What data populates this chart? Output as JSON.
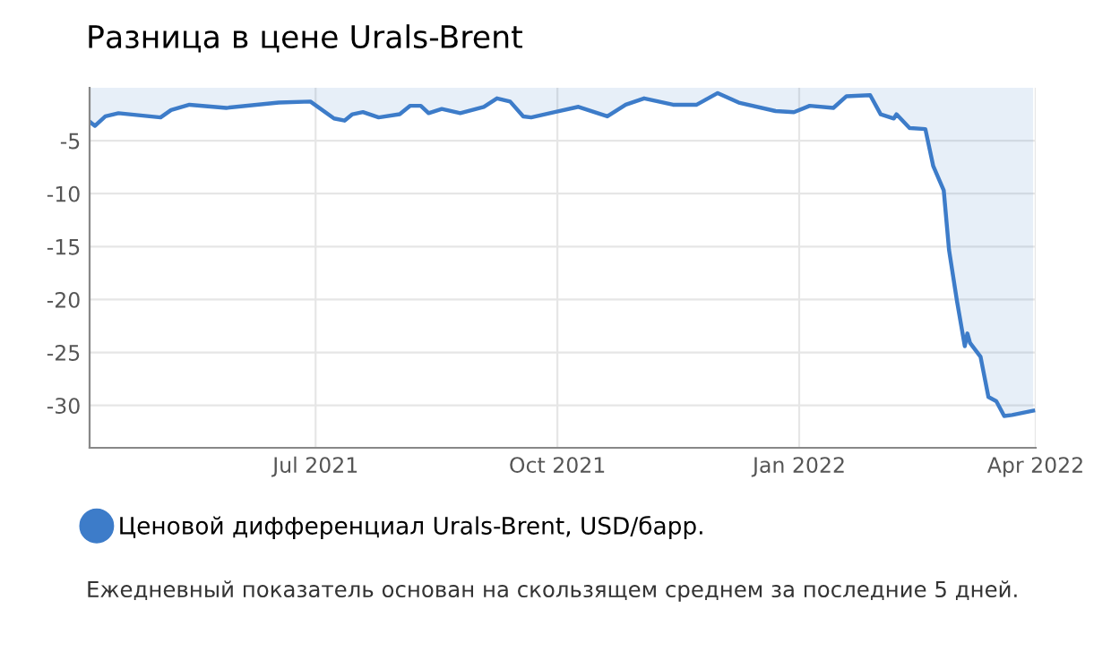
{
  "chart_data": {
    "type": "area",
    "title": "Разница в цене Urals-Brent",
    "x": [
      "2021-04-06",
      "2021-04-08",
      "2021-04-12",
      "2021-04-17",
      "2021-05-03",
      "2021-05-07",
      "2021-05-14",
      "2021-05-28",
      "2021-06-17",
      "2021-06-29",
      "2021-07-08",
      "2021-07-12",
      "2021-07-15",
      "2021-07-19",
      "2021-07-25",
      "2021-08-02",
      "2021-08-06",
      "2021-08-10",
      "2021-08-13",
      "2021-08-18",
      "2021-08-25",
      "2021-09-03",
      "2021-09-08",
      "2021-09-13",
      "2021-09-18",
      "2021-09-21",
      "2021-09-30",
      "2021-10-09",
      "2021-10-20",
      "2021-10-27",
      "2021-11-03",
      "2021-11-14",
      "2021-11-23",
      "2021-12-01",
      "2021-12-09",
      "2021-12-23",
      "2021-12-30",
      "2022-01-05",
      "2022-01-14",
      "2022-01-19",
      "2022-01-28",
      "2022-02-01",
      "2022-02-06",
      "2022-02-07",
      "2022-02-12",
      "2022-02-18",
      "2022-02-21",
      "2022-02-25",
      "2022-02-27",
      "2022-03-02",
      "2022-03-05",
      "2022-03-06",
      "2022-03-07",
      "2022-03-11",
      "2022-03-14",
      "2022-03-17",
      "2022-03-20",
      "2022-03-23",
      "2022-03-31"
    ],
    "series": [
      {
        "name": "Ценовой дифференциал Urals-Brent, USD/барр.",
        "color": "#3d7cc9",
        "values": [
          -3.2,
          -3.6,
          -2.7,
          -2.4,
          -2.8,
          -2.1,
          -1.6,
          -1.9,
          -1.4,
          -1.3,
          -2.9,
          -3.1,
          -2.5,
          -2.3,
          -2.8,
          -2.5,
          -1.7,
          -1.7,
          -2.4,
          -2.0,
          -2.4,
          -1.8,
          -1.0,
          -1.3,
          -2.7,
          -2.8,
          -2.3,
          -1.8,
          -2.7,
          -1.6,
          -1.0,
          -1.6,
          -1.6,
          -0.5,
          -1.4,
          -2.2,
          -2.3,
          -1.7,
          -1.9,
          -0.8,
          -0.7,
          -2.5,
          -2.9,
          -2.5,
          -3.8,
          -3.9,
          -7.4,
          -9.7,
          -15.3,
          -20.1,
          -24.4,
          -23.2,
          -24.1,
          -25.4,
          -29.2,
          -29.6,
          -31.0,
          -30.9,
          -30.5
        ]
      }
    ],
    "xlim": [
      "2021-04-06",
      "2022-04-01"
    ],
    "xticks": [
      {
        "value": "2021-07-01",
        "label": "Jul 2021"
      },
      {
        "value": "2021-10-01",
        "label": "Oct 2021"
      },
      {
        "value": "2022-01-01",
        "label": "Jan 2022"
      },
      {
        "value": "2022-04-01",
        "label": "Apr 2022"
      }
    ],
    "ylim": [
      -34,
      0
    ],
    "yticks": [
      -5,
      -10,
      -15,
      -20,
      -25,
      -30
    ],
    "grid": true,
    "legend": "bottom",
    "annotations": [
      "Ежедневный показатель основан на скользящем среднем за последние 5 дней."
    ]
  }
}
